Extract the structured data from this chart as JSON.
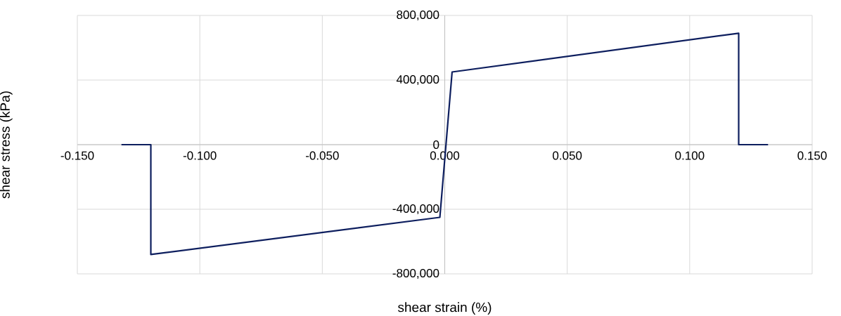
{
  "chart_data": {
    "type": "line",
    "xlabel": "shear strain (%)",
    "ylabel": "shear stress (kPa)",
    "x": [
      -0.132,
      -0.12,
      -0.12,
      -0.002,
      0.003,
      0.12,
      0.12,
      0.132
    ],
    "values": [
      0,
      0,
      -680000,
      -450000,
      450000,
      690000,
      0,
      0
    ],
    "color": "#0d1e5e",
    "xlim": [
      -0.15,
      0.15
    ],
    "ylim": [
      -800000,
      800000
    ],
    "xticks": [
      {
        "value": -0.15,
        "label": "-0.150"
      },
      {
        "value": -0.1,
        "label": "-0.100"
      },
      {
        "value": -0.05,
        "label": "-0.050"
      },
      {
        "value": 0,
        "label": "0.000"
      },
      {
        "value": 0.05,
        "label": "0.050"
      },
      {
        "value": 0.1,
        "label": "0.100"
      },
      {
        "value": 0.15,
        "label": "0.150"
      }
    ],
    "yticks": [
      {
        "value": -800000,
        "label": "-800,000"
      },
      {
        "value": -400000,
        "label": "-400,000"
      },
      {
        "value": 0,
        "label": "0"
      },
      {
        "value": 400000,
        "label": "400,000"
      },
      {
        "value": 800000,
        "label": "800,000"
      }
    ],
    "grid": true
  }
}
